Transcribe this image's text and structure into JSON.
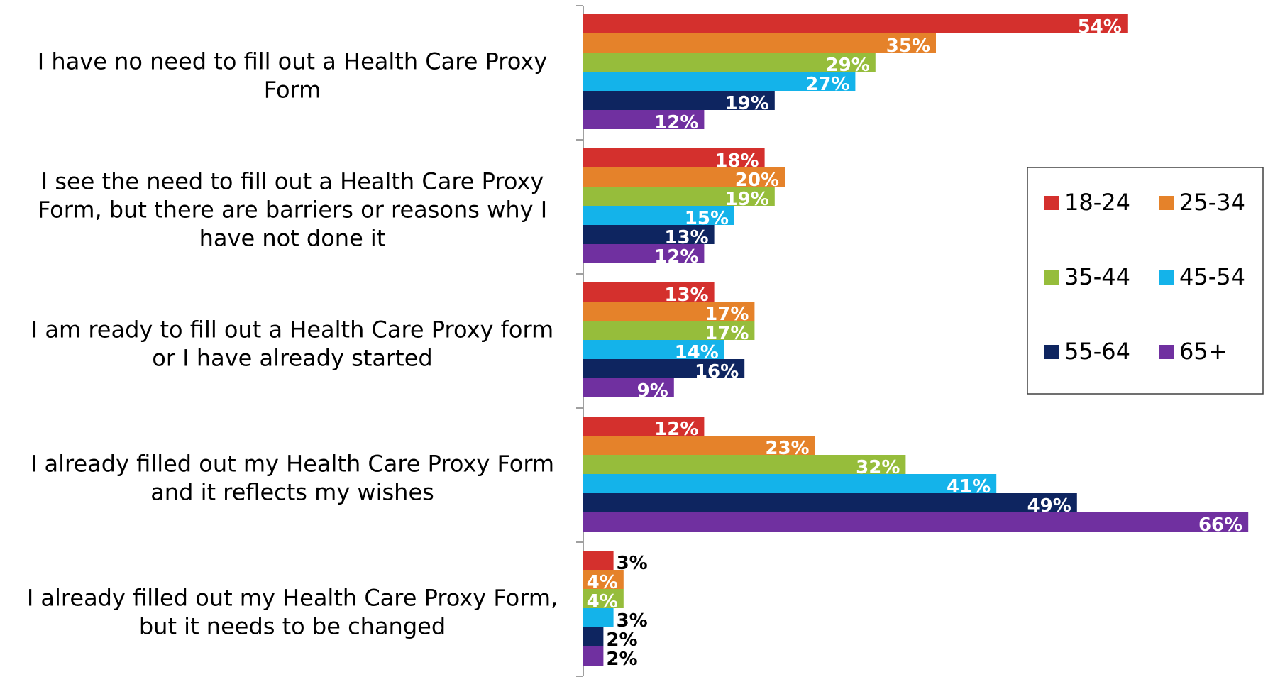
{
  "chart_data": {
    "type": "bar",
    "orientation": "horizontal",
    "categories": [
      "I have no need to fill out a Health Care Proxy Form",
      "I see the need to fill out a Health Care Proxy Form, but there are barriers or reasons why I have not done it",
      "I am ready to fill out a Health Care Proxy form or I have already started",
      "I already filled out my Health Care Proxy Form and it reflects my wishes",
      "I already filled out my Health Care Proxy Form, but it needs to be changed"
    ],
    "category_lines": [
      [
        "I have no need to fill out a Health Care Proxy",
        "Form"
      ],
      [
        "I see the need to fill out a Health Care Proxy",
        "Form, but there are barriers or reasons why I",
        "have not done it"
      ],
      [
        "I am ready to fill out a Health Care Proxy form",
        "or I have already started"
      ],
      [
        "I already filled out my Health Care Proxy Form",
        "and it reflects my wishes"
      ],
      [
        "I already filled out my Health Care Proxy Form,",
        "but it needs to be changed"
      ]
    ],
    "series": [
      {
        "name": "18-24",
        "color": "#D4302D",
        "values": [
          54,
          18,
          13,
          12,
          3
        ]
      },
      {
        "name": "25-34",
        "color": "#E5822A",
        "values": [
          35,
          20,
          17,
          23,
          4
        ]
      },
      {
        "name": "35-44",
        "color": "#96BD3B",
        "values": [
          29,
          19,
          17,
          32,
          4
        ]
      },
      {
        "name": "45-54",
        "color": "#14B3EA",
        "values": [
          27,
          15,
          14,
          41,
          3
        ]
      },
      {
        "name": "55-64",
        "color": "#0E2560",
        "values": [
          19,
          13,
          16,
          49,
          2
        ]
      },
      {
        "name": "65+",
        "color": "#7030A0",
        "values": [
          12,
          12,
          9,
          66,
          2
        ]
      }
    ],
    "value_suffix": "%",
    "xlim": [
      0,
      66
    ],
    "grid": false,
    "legend_position": "right",
    "title": "",
    "xlabel": "",
    "ylabel": ""
  }
}
